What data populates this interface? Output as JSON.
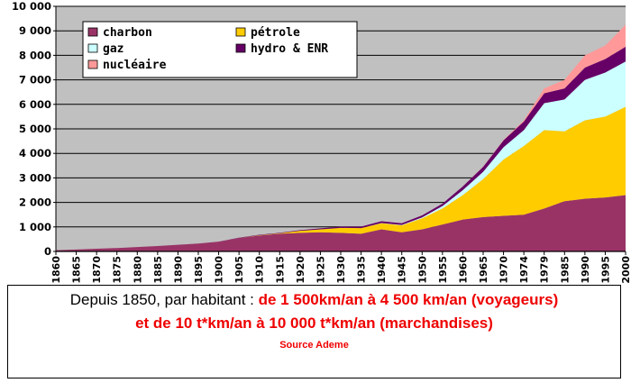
{
  "chart_data": {
    "type": "area",
    "stacked": true,
    "x": [
      1860,
      1865,
      1870,
      1875,
      1880,
      1885,
      1890,
      1895,
      1900,
      1905,
      1910,
      1915,
      1920,
      1925,
      1930,
      1935,
      1940,
      1945,
      1950,
      1955,
      1960,
      1965,
      1970,
      1974,
      1979,
      1985,
      1990,
      1995,
      2000
    ],
    "x_tick_labels": [
      "1860",
      "1865",
      "1870",
      "1875",
      "1880",
      "1885",
      "1890",
      "1895",
      "1900",
      "1905",
      "1910",
      "1915",
      "1920",
      "1925",
      "1930",
      "1935",
      "1940",
      "1945",
      "1950",
      "1955",
      "1960",
      "1965",
      "1970",
      "1974",
      "1979",
      "1985",
      "1990",
      "1995",
      "2000"
    ],
    "series": [
      {
        "name": "charbon",
        "color": "#993366",
        "values": [
          50,
          80,
          110,
          140,
          180,
          220,
          270,
          320,
          400,
          550,
          650,
          720,
          760,
          780,
          760,
          720,
          900,
          780,
          900,
          1100,
          1300,
          1400,
          1450,
          1500,
          1750,
          2050,
          2150,
          2200,
          2300
        ]
      },
      {
        "name": "pétrole",
        "color": "#ffcc00",
        "values": [
          0,
          0,
          0,
          0,
          0,
          0,
          0,
          0,
          0,
          0,
          10,
          20,
          80,
          120,
          200,
          230,
          250,
          280,
          450,
          650,
          1000,
          1550,
          2300,
          2800,
          3200,
          2850,
          3200,
          3300,
          3600
        ]
      },
      {
        "name": "gaz",
        "color": "#ccffff",
        "values": [
          0,
          0,
          0,
          0,
          0,
          0,
          0,
          0,
          0,
          0,
          0,
          0,
          0,
          0,
          0,
          0,
          10,
          20,
          40,
          100,
          200,
          300,
          500,
          650,
          1100,
          1300,
          1650,
          1800,
          1850
        ]
      },
      {
        "name": "hydro & ENR",
        "color": "#660066",
        "values": [
          0,
          0,
          0,
          0,
          0,
          0,
          0,
          0,
          0,
          10,
          20,
          20,
          30,
          40,
          50,
          60,
          70,
          70,
          80,
          100,
          150,
          200,
          280,
          350,
          400,
          450,
          500,
          550,
          600
        ]
      },
      {
        "name": "nucléaire",
        "color": "#ff9999",
        "values": [
          0,
          0,
          0,
          0,
          0,
          0,
          0,
          0,
          0,
          0,
          0,
          0,
          0,
          0,
          0,
          0,
          0,
          0,
          0,
          0,
          0,
          10,
          20,
          50,
          200,
          350,
          500,
          550,
          900
        ]
      }
    ],
    "ylim": [
      0,
      10000
    ],
    "y_ticks": [
      0,
      1000,
      2000,
      3000,
      4000,
      5000,
      6000,
      7000,
      8000,
      9000,
      10000
    ],
    "y_tick_labels": [
      "0",
      "1 000",
      "2 000",
      "3 000",
      "4 000",
      "5 000",
      "6 000",
      "7 000",
      "8 000",
      "9 000",
      "10 000"
    ],
    "grid": "horizontal",
    "legend_position": "top-left",
    "plot_background": "#c0c0c0"
  },
  "caption": {
    "line1_plain": "Depuis 1850, par habitant : ",
    "line1_red": "de 1 500km/an à 4 500 km/an (voyageurs)",
    "line2": "et  de 10 t*km/an à 10 000 t*km/an (marchandises)",
    "source": "Source Ademe"
  }
}
